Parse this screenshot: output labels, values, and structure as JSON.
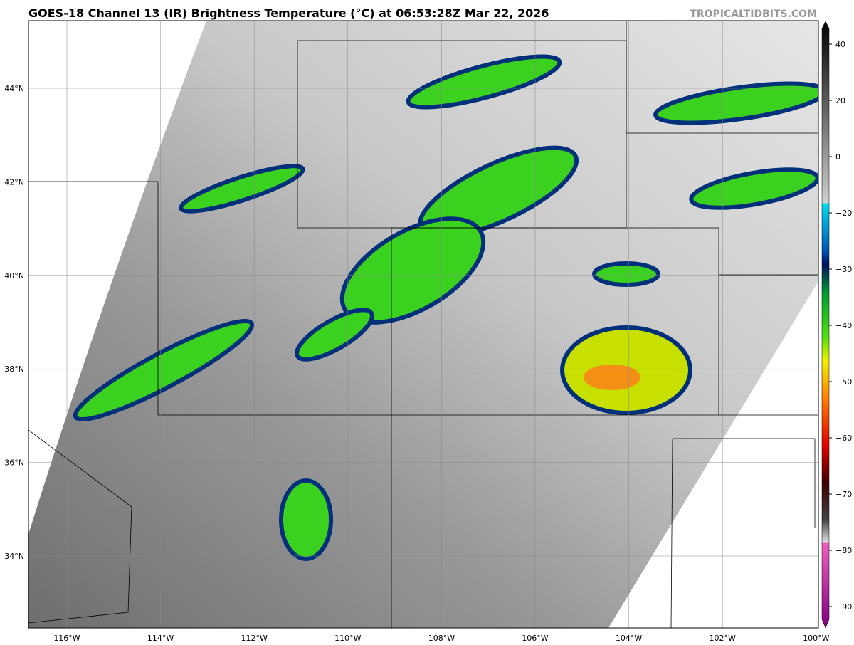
{
  "header": {
    "title": "GOES-18 Channel 13 (IR) Brightness Temperature (°C) at 06:53:28Z Mar 22, 2026",
    "credit": "TROPICALTIDBITS.COM"
  },
  "map": {
    "lon_labels": [
      "116°W",
      "114°W",
      "112°W",
      "110°W",
      "108°W",
      "106°W",
      "104°W",
      "102°W",
      "100°W"
    ],
    "lat_labels": [
      "44°N",
      "42°N",
      "40°N",
      "38°N",
      "36°N",
      "34°N"
    ]
  },
  "colorbar": {
    "labels": [
      "40",
      "20",
      "0",
      "−20",
      "−30",
      "−40",
      "−50",
      "−60",
      "−70",
      "−80",
      "−90"
    ]
  }
}
